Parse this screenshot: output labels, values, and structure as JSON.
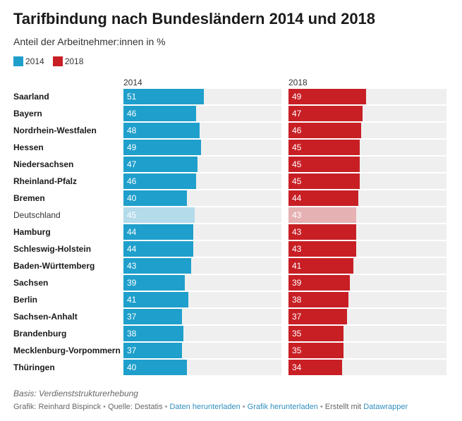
{
  "chart_data": {
    "type": "bar",
    "title": "Tarifbindung nach Bundesländern 2014 und 2018",
    "subtitle": "Anteil der Arbeitnehmer:innen in %",
    "xlim": [
      0,
      100
    ],
    "categories": [
      "Saarland",
      "Bayern",
      "Nordrhein-Westfalen",
      "Hessen",
      "Niedersachsen",
      "Rheinland-Pfalz",
      "Bremen",
      "Deutschland",
      "Hamburg",
      "Schleswig-Holstein",
      "Baden-Württemberg",
      "Sachsen",
      "Berlin",
      "Sachsen-Anhalt",
      "Brandenburg",
      "Mecklenburg-Vorpommern",
      "Thüringen"
    ],
    "highlight_category": "Deutschland",
    "series": [
      {
        "name": "2014",
        "color": "#1f9fcb",
        "highlight_color": "#b3dbea",
        "values": [
          51,
          46,
          48,
          49,
          47,
          46,
          40,
          45,
          44,
          44,
          43,
          39,
          41,
          37,
          38,
          37,
          40
        ]
      },
      {
        "name": "2018",
        "color": "#c81f25",
        "highlight_color": "#e6b1b3",
        "values": [
          49,
          47,
          46,
          45,
          45,
          45,
          44,
          43,
          43,
          43,
          41,
          39,
          38,
          37,
          35,
          35,
          34
        ]
      }
    ]
  },
  "notes": "Basis: Verdienststrukturerhebung",
  "footer": {
    "grafik": "Grafik: Reinhard Bispinck",
    "quelle": "Quelle: Destatis",
    "daten_link": "Daten herunterladen",
    "grafik_link": "Grafik herunterladen",
    "erstellt": "Erstellt mit",
    "datawrapper_link": "Datawrapper",
    "separator": "•"
  }
}
